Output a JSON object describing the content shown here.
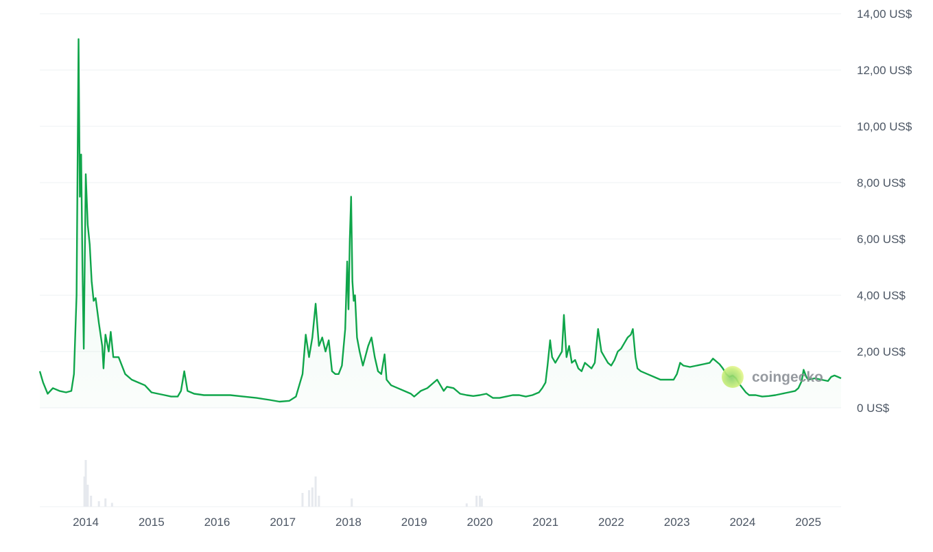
{
  "chart_data": {
    "type": "line",
    "title": "",
    "xlabel": "",
    "ylabel": "",
    "ylim": [
      0,
      14
    ],
    "grid": true,
    "legend": "none",
    "y_ticks": [
      "0 US$",
      "2,00 US$",
      "4,00 US$",
      "6,00 US$",
      "8,00 US$",
      "10,00 US$",
      "12,00 US$",
      "14,00 US$"
    ],
    "x_ticks": [
      "2014",
      "2015",
      "2016",
      "2017",
      "2018",
      "2019",
      "2020",
      "2021",
      "2022",
      "2023",
      "2024",
      "2025"
    ],
    "watermark": "coingecko",
    "colors": {
      "line": "#0fa54a",
      "grid": "#eef0f3",
      "volume": "#e6e9ee",
      "text": "#4b5563"
    },
    "series": [
      {
        "values": [
          [
            2013.3,
            1.3
          ],
          [
            2013.35,
            0.9
          ],
          [
            2013.42,
            0.5
          ],
          [
            2013.5,
            0.7
          ],
          [
            2013.6,
            0.6
          ],
          [
            2013.7,
            0.55
          ],
          [
            2013.78,
            0.6
          ],
          [
            2013.82,
            1.2
          ],
          [
            2013.86,
            4.0
          ],
          [
            2013.89,
            13.1
          ],
          [
            2013.91,
            7.5
          ],
          [
            2013.93,
            9.0
          ],
          [
            2013.95,
            5.0
          ],
          [
            2013.97,
            2.1
          ],
          [
            2014.0,
            8.3
          ],
          [
            2014.03,
            6.5
          ],
          [
            2014.06,
            5.8
          ],
          [
            2014.09,
            4.5
          ],
          [
            2014.12,
            3.8
          ],
          [
            2014.15,
            3.9
          ],
          [
            2014.2,
            3.0
          ],
          [
            2014.25,
            2.2
          ],
          [
            2014.27,
            1.4
          ],
          [
            2014.3,
            2.6
          ],
          [
            2014.35,
            2.0
          ],
          [
            2014.38,
            2.7
          ],
          [
            2014.42,
            1.8
          ],
          [
            2014.5,
            1.8
          ],
          [
            2014.6,
            1.2
          ],
          [
            2014.7,
            1.0
          ],
          [
            2014.8,
            0.9
          ],
          [
            2014.9,
            0.8
          ],
          [
            2015.0,
            0.55
          ],
          [
            2015.1,
            0.5
          ],
          [
            2015.2,
            0.45
          ],
          [
            2015.3,
            0.4
          ],
          [
            2015.4,
            0.4
          ],
          [
            2015.45,
            0.6
          ],
          [
            2015.5,
            1.3
          ],
          [
            2015.55,
            0.6
          ],
          [
            2015.65,
            0.5
          ],
          [
            2015.8,
            0.45
          ],
          [
            2016.0,
            0.45
          ],
          [
            2016.2,
            0.45
          ],
          [
            2016.4,
            0.4
          ],
          [
            2016.6,
            0.35
          ],
          [
            2016.8,
            0.28
          ],
          [
            2016.95,
            0.22
          ],
          [
            2017.1,
            0.25
          ],
          [
            2017.2,
            0.4
          ],
          [
            2017.25,
            0.8
          ],
          [
            2017.3,
            1.2
          ],
          [
            2017.35,
            2.6
          ],
          [
            2017.4,
            1.8
          ],
          [
            2017.45,
            2.5
          ],
          [
            2017.5,
            3.7
          ],
          [
            2017.55,
            2.2
          ],
          [
            2017.6,
            2.5
          ],
          [
            2017.65,
            2.0
          ],
          [
            2017.7,
            2.4
          ],
          [
            2017.75,
            1.3
          ],
          [
            2017.8,
            1.2
          ],
          [
            2017.85,
            1.2
          ],
          [
            2017.9,
            1.5
          ],
          [
            2017.95,
            2.8
          ],
          [
            2017.98,
            5.2
          ],
          [
            2018.0,
            3.5
          ],
          [
            2018.02,
            6.0
          ],
          [
            2018.04,
            7.5
          ],
          [
            2018.06,
            4.5
          ],
          [
            2018.08,
            3.8
          ],
          [
            2018.1,
            4.0
          ],
          [
            2018.13,
            2.5
          ],
          [
            2018.17,
            2.0
          ],
          [
            2018.22,
            1.5
          ],
          [
            2018.3,
            2.2
          ],
          [
            2018.35,
            2.5
          ],
          [
            2018.4,
            1.8
          ],
          [
            2018.45,
            1.3
          ],
          [
            2018.5,
            1.2
          ],
          [
            2018.55,
            1.9
          ],
          [
            2018.58,
            1.0
          ],
          [
            2018.65,
            0.8
          ],
          [
            2018.75,
            0.7
          ],
          [
            2018.85,
            0.6
          ],
          [
            2018.95,
            0.5
          ],
          [
            2019.0,
            0.4
          ],
          [
            2019.1,
            0.6
          ],
          [
            2019.2,
            0.7
          ],
          [
            2019.3,
            0.9
          ],
          [
            2019.35,
            1.0
          ],
          [
            2019.4,
            0.8
          ],
          [
            2019.45,
            0.6
          ],
          [
            2019.5,
            0.75
          ],
          [
            2019.6,
            0.7
          ],
          [
            2019.7,
            0.5
          ],
          [
            2019.8,
            0.45
          ],
          [
            2019.9,
            0.42
          ],
          [
            2020.0,
            0.45
          ],
          [
            2020.1,
            0.5
          ],
          [
            2020.2,
            0.35
          ],
          [
            2020.3,
            0.35
          ],
          [
            2020.4,
            0.4
          ],
          [
            2020.5,
            0.45
          ],
          [
            2020.6,
            0.45
          ],
          [
            2020.7,
            0.4
          ],
          [
            2020.8,
            0.45
          ],
          [
            2020.9,
            0.55
          ],
          [
            2020.95,
            0.7
          ],
          [
            2021.0,
            0.9
          ],
          [
            2021.03,
            1.5
          ],
          [
            2021.07,
            2.4
          ],
          [
            2021.1,
            1.8
          ],
          [
            2021.15,
            1.6
          ],
          [
            2021.2,
            1.8
          ],
          [
            2021.25,
            2.0
          ],
          [
            2021.28,
            3.3
          ],
          [
            2021.32,
            1.8
          ],
          [
            2021.36,
            2.2
          ],
          [
            2021.4,
            1.6
          ],
          [
            2021.45,
            1.7
          ],
          [
            2021.5,
            1.4
          ],
          [
            2021.55,
            1.3
          ],
          [
            2021.6,
            1.6
          ],
          [
            2021.65,
            1.5
          ],
          [
            2021.7,
            1.4
          ],
          [
            2021.75,
            1.6
          ],
          [
            2021.8,
            2.8
          ],
          [
            2021.85,
            2.0
          ],
          [
            2021.9,
            1.8
          ],
          [
            2021.95,
            1.6
          ],
          [
            2022.0,
            1.5
          ],
          [
            2022.05,
            1.7
          ],
          [
            2022.1,
            2.0
          ],
          [
            2022.15,
            2.1
          ],
          [
            2022.2,
            2.3
          ],
          [
            2022.25,
            2.5
          ],
          [
            2022.3,
            2.6
          ],
          [
            2022.33,
            2.8
          ],
          [
            2022.37,
            1.8
          ],
          [
            2022.4,
            1.4
          ],
          [
            2022.45,
            1.3
          ],
          [
            2022.55,
            1.2
          ],
          [
            2022.65,
            1.1
          ],
          [
            2022.75,
            1.0
          ],
          [
            2022.85,
            1.0
          ],
          [
            2022.95,
            1.0
          ],
          [
            2023.0,
            1.2
          ],
          [
            2023.05,
            1.6
          ],
          [
            2023.1,
            1.5
          ],
          [
            2023.2,
            1.45
          ],
          [
            2023.3,
            1.5
          ],
          [
            2023.4,
            1.55
          ],
          [
            2023.5,
            1.6
          ],
          [
            2023.55,
            1.75
          ],
          [
            2023.6,
            1.65
          ],
          [
            2023.65,
            1.55
          ],
          [
            2023.7,
            1.4
          ],
          [
            2023.75,
            1.2
          ],
          [
            2023.8,
            1.1
          ],
          [
            2023.85,
            1.15
          ],
          [
            2023.9,
            1.05
          ],
          [
            2023.95,
            0.85
          ],
          [
            2024.0,
            0.7
          ],
          [
            2024.05,
            0.55
          ],
          [
            2024.1,
            0.45
          ],
          [
            2024.2,
            0.45
          ],
          [
            2024.3,
            0.4
          ],
          [
            2024.4,
            0.42
          ],
          [
            2024.5,
            0.45
          ],
          [
            2024.6,
            0.5
          ],
          [
            2024.7,
            0.55
          ],
          [
            2024.8,
            0.6
          ],
          [
            2024.85,
            0.7
          ],
          [
            2024.9,
            0.95
          ],
          [
            2024.93,
            1.35
          ],
          [
            2024.97,
            1.1
          ],
          [
            2025.0,
            1.0
          ],
          [
            2025.1,
            1.05
          ],
          [
            2025.2,
            1.0
          ],
          [
            2025.3,
            0.95
          ],
          [
            2025.35,
            1.1
          ],
          [
            2025.4,
            1.15
          ],
          [
            2025.45,
            1.1
          ],
          [
            2025.5,
            1.05
          ]
        ]
      }
    ],
    "volume": [
      [
        2013.98,
        0.55
      ],
      [
        2014.0,
        0.85
      ],
      [
        2014.03,
        0.4
      ],
      [
        2014.08,
        0.2
      ],
      [
        2014.2,
        0.1
      ],
      [
        2014.3,
        0.15
      ],
      [
        2014.4,
        0.07
      ],
      [
        2017.3,
        0.25
      ],
      [
        2017.4,
        0.3
      ],
      [
        2017.45,
        0.35
      ],
      [
        2017.5,
        0.55
      ],
      [
        2017.55,
        0.2
      ],
      [
        2018.05,
        0.15
      ],
      [
        2019.8,
        0.06
      ],
      [
        2019.95,
        0.2
      ],
      [
        2020.0,
        0.2
      ],
      [
        2020.03,
        0.15
      ]
    ]
  }
}
